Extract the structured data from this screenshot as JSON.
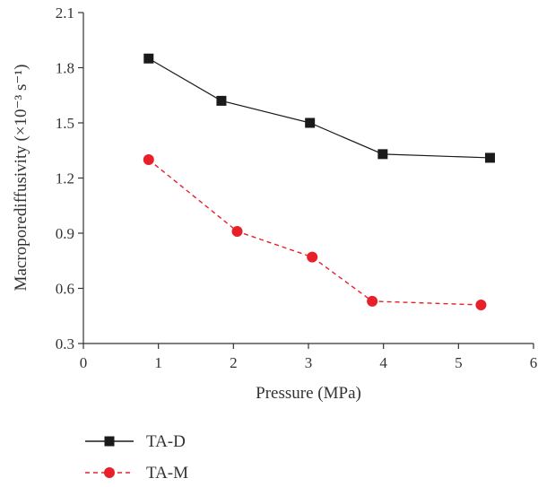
{
  "chart_data": {
    "type": "line",
    "title": "",
    "xlabel": "Pressure (MPa)",
    "ylabel": "Macroporediffusivity (×10⁻³ s⁻¹)",
    "xlim": [
      0,
      6
    ],
    "ylim": [
      0.3,
      2.1
    ],
    "xticks": [
      "0",
      "1",
      "2",
      "3",
      "4",
      "5",
      "6"
    ],
    "yticks": [
      "0.3",
      "0.6",
      "0.9",
      "1.2",
      "1.5",
      "1.8",
      "2.1"
    ],
    "grid": false,
    "legend_position": "bottom-left",
    "series": [
      {
        "name": "TA-D",
        "color": "#1a1a1a",
        "marker": "square",
        "line": "solid",
        "x": [
          0.87,
          1.84,
          3.02,
          3.99,
          5.42
        ],
        "y": [
          1.85,
          1.62,
          1.5,
          1.33,
          1.31
        ]
      },
      {
        "name": "TA-M",
        "color": "#e8202a",
        "marker": "circle",
        "line": "dashed",
        "x": [
          0.87,
          2.05,
          3.05,
          3.85,
          5.3
        ],
        "y": [
          1.3,
          0.91,
          0.77,
          0.53,
          0.51
        ]
      }
    ]
  }
}
